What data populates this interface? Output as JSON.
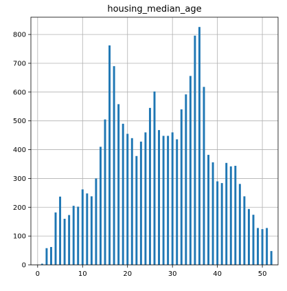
{
  "chart_data": {
    "type": "bar",
    "title": "housing_median_age",
    "xlabel": "",
    "ylabel": "",
    "xlim": [
      -1.5,
      53.5
    ],
    "ylim": [
      0,
      860
    ],
    "grid": true,
    "legend": "none",
    "bar_color": "#1f77b4",
    "grid_color": "#b0b0b0",
    "x": [
      1,
      2,
      3,
      4,
      5,
      6,
      7,
      8,
      9,
      10,
      11,
      12,
      13,
      14,
      15,
      16,
      17,
      18,
      19,
      20,
      21,
      22,
      23,
      24,
      25,
      26,
      27,
      28,
      29,
      30,
      31,
      32,
      33,
      34,
      35,
      36,
      37,
      38,
      39,
      40,
      41,
      42,
      43,
      44,
      45,
      46,
      47,
      48,
      49,
      50,
      51,
      52
    ],
    "values": [
      4,
      58,
      62,
      182,
      237,
      160,
      173,
      205,
      202,
      262,
      248,
      238,
      300,
      410,
      505,
      762,
      690,
      558,
      490,
      455,
      440,
      378,
      428,
      460,
      545,
      602,
      468,
      448,
      448,
      460,
      436,
      540,
      592,
      656,
      796,
      826,
      618,
      382,
      356,
      290,
      284,
      354,
      342,
      344,
      281,
      238,
      194,
      174,
      128,
      124,
      128,
      48
    ],
    "x_ticks": [
      "0",
      "10",
      "20",
      "30",
      "40",
      "50"
    ],
    "y_ticks": [
      "0",
      "100",
      "200",
      "300",
      "400",
      "500",
      "600",
      "700",
      "800"
    ]
  }
}
